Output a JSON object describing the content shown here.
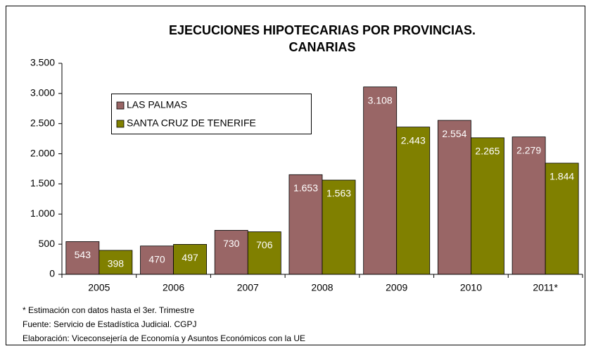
{
  "chart_data": {
    "type": "bar",
    "title": [
      "EJECUCIONES HIPOTECARIAS POR PROVINCIAS.",
      "CANARIAS"
    ],
    "categories": [
      "2005",
      "2006",
      "2007",
      "2008",
      "2009",
      "2010",
      "2011*"
    ],
    "series": [
      {
        "name": "LAS PALMAS",
        "color": "#996666",
        "values": [
          543,
          470,
          730,
          1653,
          3108,
          2554,
          2279
        ],
        "value_labels": [
          "543",
          "470",
          "730",
          "1.653",
          "3.108",
          "2.554",
          "2.279"
        ]
      },
      {
        "name": "SANTA CRUZ DE TENERIFE",
        "color": "#808000",
        "values": [
          398,
          497,
          706,
          1563,
          2443,
          2265,
          1844
        ],
        "value_labels": [
          "398",
          "497",
          "706",
          "1.563",
          "2.443",
          "2.265",
          "1.844"
        ]
      }
    ],
    "ylim": [
      0,
      3500
    ],
    "yticks": [
      0,
      500,
      {
        "value": 1000,
        "label": "1.000"
      },
      {
        "value": 1500,
        "label": "1.500"
      },
      {
        "value": 2000,
        "label": "2.000"
      },
      {
        "value": 2500,
        "label": "2.500"
      },
      {
        "value": 3000,
        "label": "3.000"
      },
      {
        "value": 3500,
        "label": "3.500"
      }
    ],
    "grid": false,
    "legend": "upper-left",
    "notes": [
      "* Estimación con datos hasta el 3er. Trimestre",
      "Fuente: Servicio de Estadística Judicial. CGPJ",
      "Elaboración: Viceconsejería de Economía y Asuntos Económicos con la UE"
    ]
  }
}
